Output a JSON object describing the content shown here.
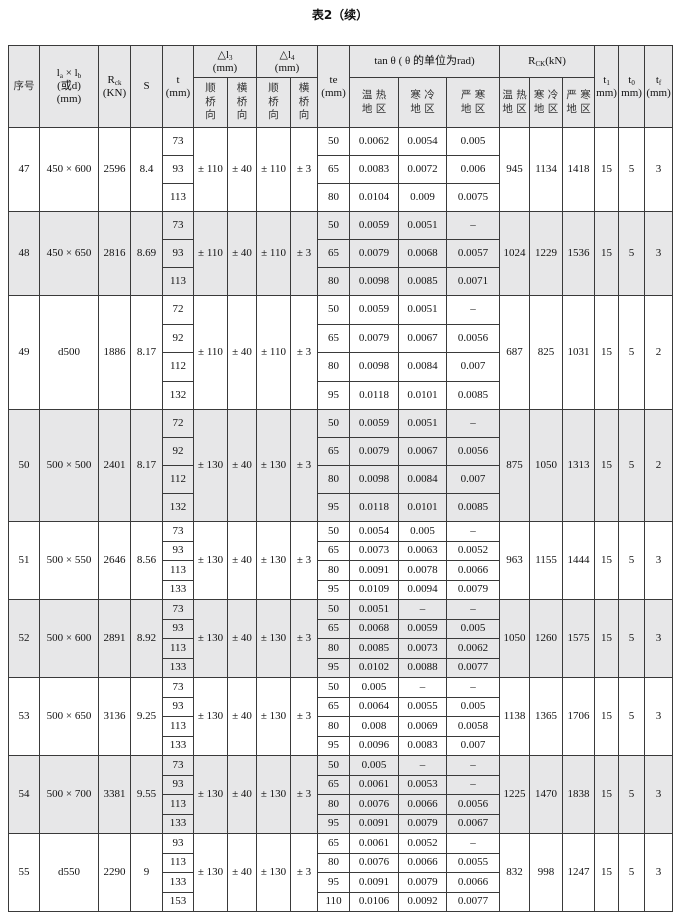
{
  "title": "表2（续）",
  "header": {
    "no": "序号",
    "size": {
      "l1": "l",
      "s1": "a",
      "x": " × ",
      "l2": "l",
      "s2": "b",
      "alt": "(或d)",
      "unit": "(mm)"
    },
    "rck": {
      "base": "R",
      "sub": "ck",
      "unit": "(KN)"
    },
    "s": "S",
    "t": {
      "base": "t",
      "unit": "(mm)"
    },
    "dl3": {
      "base": "△l",
      "sub": "3",
      "unit": "(mm)"
    },
    "dl4": {
      "base": "△l",
      "sub": "4",
      "unit": "(mm)"
    },
    "long": "顺桥向",
    "trans": "横桥向",
    "te": {
      "base": "te",
      "unit": "(mm)"
    },
    "tan": "tan θ ( θ 的单位为rad)",
    "rck_kn": {
      "base": "R",
      "sub": "CK",
      "unit": "(kN)"
    },
    "warm": "温 热 地 区",
    "cold": "寒 冷 地 区",
    "severe": "严 寒 地 区",
    "t1": {
      "base": "t",
      "sub": "1",
      "unit": "mm)"
    },
    "t0": {
      "base": "t",
      "sub": "0",
      "unit": "mm)"
    },
    "tf": {
      "base": "t",
      "sub": "f",
      "unit": "(mm)"
    }
  },
  "groups": [
    {
      "no": "47",
      "size": "450 × 600",
      "rck": "2596",
      "s": "8.4",
      "t": [
        "73",
        "93",
        "113"
      ],
      "dl3_long": "± 110",
      "dl3_trans": "± 40",
      "dl4_long": "± 110",
      "dl4_trans": "± 3",
      "te": [
        "50",
        "65",
        "80"
      ],
      "tan_warm": [
        "0.0062",
        "0.0083",
        "0.0104"
      ],
      "tan_cold": [
        "0.0054",
        "0.0072",
        "0.009"
      ],
      "tan_severe": [
        "0.005",
        "0.006",
        "0.0075"
      ],
      "rck_warm": "945",
      "rck_cold": "1134",
      "rck_severe": "1418",
      "t1": "15",
      "t0": "5",
      "tf": "3"
    },
    {
      "no": "48",
      "size": "450 × 650",
      "rck": "2816",
      "s": "8.69",
      "t": [
        "73",
        "93",
        "113"
      ],
      "dl3_long": "± 110",
      "dl3_trans": "± 40",
      "dl4_long": "± 110",
      "dl4_trans": "± 3",
      "te": [
        "50",
        "65",
        "80"
      ],
      "tan_warm": [
        "0.0059",
        "0.0079",
        "0.0098"
      ],
      "tan_cold": [
        "0.0051",
        "0.0068",
        "0.0085"
      ],
      "tan_severe": [
        "–",
        "0.0057",
        "0.0071"
      ],
      "rck_warm": "1024",
      "rck_cold": "1229",
      "rck_severe": "1536",
      "t1": "15",
      "t0": "5",
      "tf": "3"
    },
    {
      "no": "49",
      "size": "d500",
      "rck": "1886",
      "s": "8.17",
      "t": [
        "72",
        "92",
        "112",
        "132"
      ],
      "dl3_long": "± 110",
      "dl3_trans": "± 40",
      "dl4_long": "± 110",
      "dl4_trans": "± 3",
      "te": [
        "50",
        "65",
        "80",
        "95"
      ],
      "tan_warm": [
        "0.0059",
        "0.0079",
        "0.0098",
        "0.0118"
      ],
      "tan_cold": [
        "0.0051",
        "0.0067",
        "0.0084",
        "0.0101"
      ],
      "tan_severe": [
        "–",
        "0.0056",
        "0.007",
        "0.0085"
      ],
      "rck_warm": "687",
      "rck_cold": "825",
      "rck_severe": "1031",
      "t1": "15",
      "t0": "5",
      "tf": "2"
    },
    {
      "no": "50",
      "size": "500 × 500",
      "rck": "2401",
      "s": "8.17",
      "t": [
        "72",
        "92",
        "112",
        "132"
      ],
      "dl3_long": "± 130",
      "dl3_trans": "± 40",
      "dl4_long": "± 130",
      "dl4_trans": "± 3",
      "te": [
        "50",
        "65",
        "80",
        "95"
      ],
      "tan_warm": [
        "0.0059",
        "0.0079",
        "0.0098",
        "0.0118"
      ],
      "tan_cold": [
        "0.0051",
        "0.0067",
        "0.0084",
        "0.0101"
      ],
      "tan_severe": [
        "–",
        "0.0056",
        "0.007",
        "0.0085"
      ],
      "rck_warm": "875",
      "rck_cold": "1050",
      "rck_severe": "1313",
      "t1": "15",
      "t0": "5",
      "tf": "2"
    },
    {
      "no": "51",
      "size": "500 × 550",
      "rck": "2646",
      "s": "8.56",
      "t": [
        "73",
        "93",
        "113",
        "133"
      ],
      "dl3_long": "± 130",
      "dl3_trans": "± 40",
      "dl4_long": "± 130",
      "dl4_trans": "± 3",
      "te": [
        "50",
        "65",
        "80",
        "95"
      ],
      "tan_warm": [
        "0.0054",
        "0.0073",
        "0.0091",
        "0.0109"
      ],
      "tan_cold": [
        "0.005",
        "0.0063",
        "0.0078",
        "0.0094"
      ],
      "tan_severe": [
        "–",
        "0.0052",
        "0.0066",
        "0.0079"
      ],
      "rck_warm": "963",
      "rck_cold": "1155",
      "rck_severe": "1444",
      "t1": "15",
      "t0": "5",
      "tf": "3"
    },
    {
      "no": "52",
      "size": "500 × 600",
      "rck": "2891",
      "s": "8.92",
      "t": [
        "73",
        "93",
        "113",
        "133"
      ],
      "dl3_long": "± 130",
      "dl3_trans": "± 40",
      "dl4_long": "± 130",
      "dl4_trans": "± 3",
      "te": [
        "50",
        "65",
        "80",
        "95"
      ],
      "tan_warm": [
        "0.0051",
        "0.0068",
        "0.0085",
        "0.0102"
      ],
      "tan_cold": [
        "–",
        "0.0059",
        "0.0073",
        "0.0088"
      ],
      "tan_severe": [
        "–",
        "0.005",
        "0.0062",
        "0.0077"
      ],
      "rck_warm": "1050",
      "rck_cold": "1260",
      "rck_severe": "1575",
      "t1": "15",
      "t0": "5",
      "tf": "3"
    },
    {
      "no": "53",
      "size": "500 × 650",
      "rck": "3136",
      "s": "9.25",
      "t": [
        "73",
        "93",
        "113",
        "133"
      ],
      "dl3_long": "± 130",
      "dl3_trans": "± 40",
      "dl4_long": "± 130",
      "dl4_trans": "± 3",
      "te": [
        "50",
        "65",
        "80",
        "95"
      ],
      "tan_warm": [
        "0.005",
        "0.0064",
        "0.008",
        "0.0096"
      ],
      "tan_cold": [
        "–",
        "0.0055",
        "0.0069",
        "0.0083"
      ],
      "tan_severe": [
        "–",
        "0.005",
        "0.0058",
        "0.007"
      ],
      "rck_warm": "1138",
      "rck_cold": "1365",
      "rck_severe": "1706",
      "t1": "15",
      "t0": "5",
      "tf": "3"
    },
    {
      "no": "54",
      "size": "500 × 700",
      "rck": "3381",
      "s": "9.55",
      "t": [
        "73",
        "93",
        "113",
        "133"
      ],
      "dl3_long": "± 130",
      "dl3_trans": "± 40",
      "dl4_long": "± 130",
      "dl4_trans": "± 3",
      "te": [
        "50",
        "65",
        "80",
        "95"
      ],
      "tan_warm": [
        "0.005",
        "0.0061",
        "0.0076",
        "0.0091"
      ],
      "tan_cold": [
        "–",
        "0.0053",
        "0.0066",
        "0.0079"
      ],
      "tan_severe": [
        "–",
        "–",
        "0.0056",
        "0.0067"
      ],
      "rck_warm": "1225",
      "rck_cold": "1470",
      "rck_severe": "1838",
      "t1": "15",
      "t0": "5",
      "tf": "3"
    },
    {
      "no": "55",
      "size": "d550",
      "rck": "2290",
      "s": "9",
      "t": [
        "93",
        "113",
        "133",
        "153"
      ],
      "dl3_long": "± 130",
      "dl3_trans": "± 40",
      "dl4_long": "± 130",
      "dl4_trans": "± 3",
      "te": [
        "65",
        "80",
        "95",
        "110"
      ],
      "tan_warm": [
        "0.0061",
        "0.0076",
        "0.0091",
        "0.0106"
      ],
      "tan_cold": [
        "0.0052",
        "0.0066",
        "0.0079",
        "0.0092"
      ],
      "tan_severe": [
        "–",
        "0.0055",
        "0.0066",
        "0.0077"
      ],
      "rck_warm": "832",
      "rck_cold": "998",
      "rck_severe": "1247",
      "t1": "15",
      "t0": "5",
      "tf": "3"
    }
  ],
  "colors": {
    "header_bg": "#e7e7e8",
    "shade_bg": "#e7e7e8",
    "border": "#3a3a3a"
  }
}
